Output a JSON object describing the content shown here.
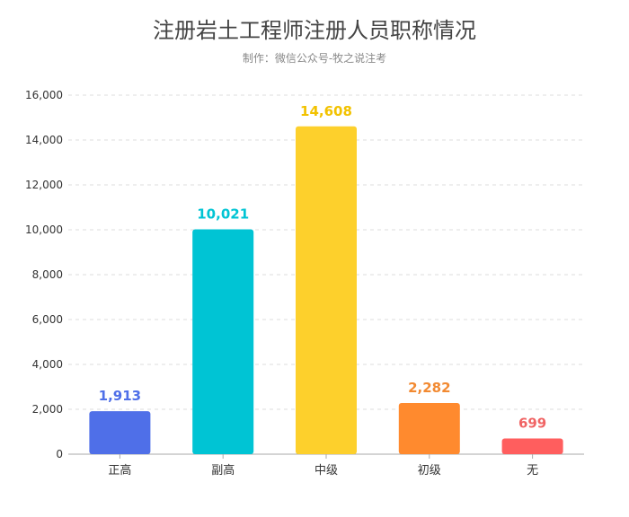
{
  "chart_data": {
    "type": "bar",
    "title": "注册岩土工程师注册人员职称情况",
    "subtitle": "制作：微信公众号-牧之说注考",
    "categories": [
      "正高",
      "副高",
      "中级",
      "初级",
      "无"
    ],
    "values": [
      1913,
      10021,
      14608,
      2282,
      699
    ],
    "value_labels": [
      "1,913",
      "10,021",
      "14,608",
      "2,282",
      "699"
    ],
    "colors": [
      "#4f6fe8",
      "#00c4d4",
      "#fdd02c",
      "#ff8a2e",
      "#ff5e5e"
    ],
    "label_colors": [
      "#4f6fe8",
      "#00c4d4",
      "#f2c200",
      "#f28a32",
      "#f06464"
    ],
    "ylim": [
      0,
      16000
    ],
    "yticks": [
      0,
      2000,
      4000,
      6000,
      8000,
      10000,
      12000,
      14000,
      16000
    ],
    "ytick_labels": [
      "0",
      "2,000",
      "4,000",
      "6,000",
      "8,000",
      "10,000",
      "12,000",
      "14,000",
      "16,000"
    ],
    "grid": true,
    "xlabel": "",
    "ylabel": ""
  }
}
